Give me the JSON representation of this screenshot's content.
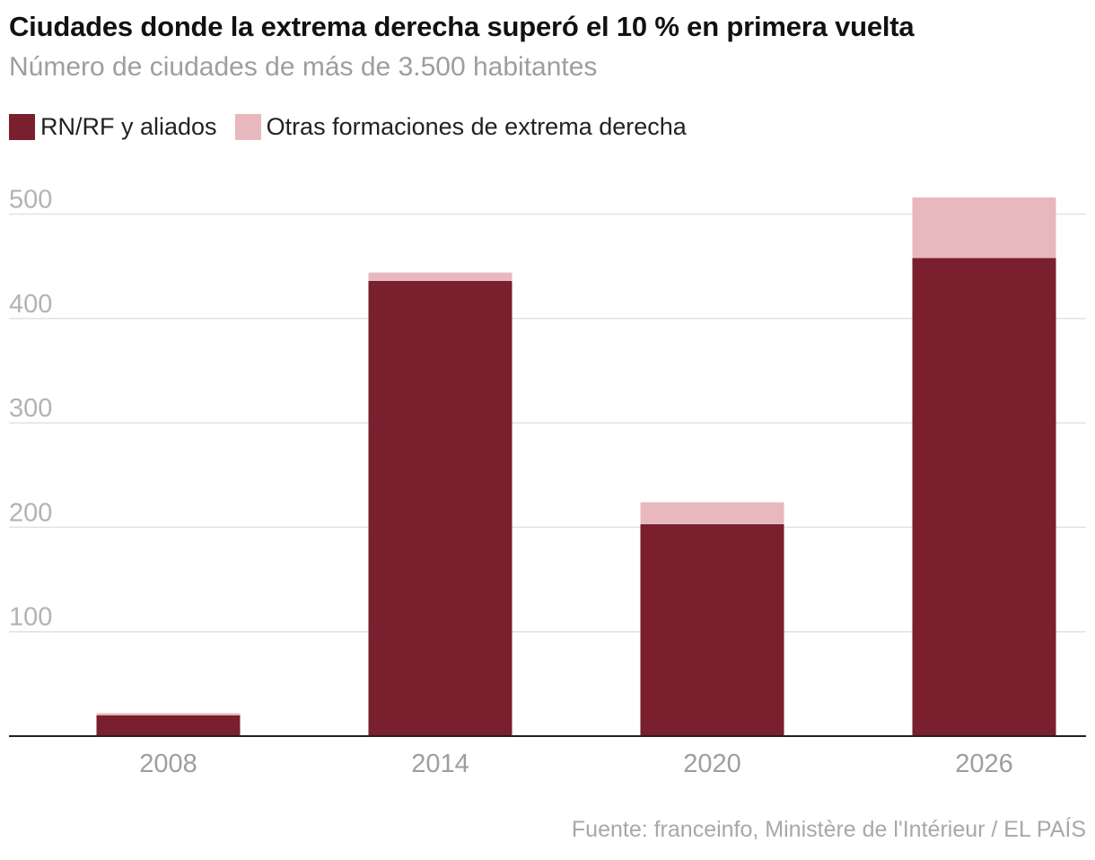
{
  "chart_data": {
    "type": "bar",
    "stacked": true,
    "title": "Ciudades donde la extrema derecha superó el 10 % en primera vuelta",
    "subtitle": "Número de ciudades de más de 3.500 habitantes",
    "categories": [
      "2008",
      "2014",
      "2020",
      "2026"
    ],
    "series": [
      {
        "name": "RN/RF y aliados",
        "color": "#7a1f2d",
        "values": [
          20,
          436,
          203,
          458
        ]
      },
      {
        "name": "Otras formaciones de extrema derecha",
        "color": "#e8b8bf",
        "values": [
          2,
          8,
          21,
          58
        ]
      }
    ],
    "yticks": [
      100,
      200,
      300,
      400,
      500
    ],
    "ylim": [
      0,
      530
    ],
    "grid": true,
    "legend_position": "top-left",
    "source": "Fuente: franceinfo, Ministère de l'Intérieur / EL PAÍS"
  }
}
